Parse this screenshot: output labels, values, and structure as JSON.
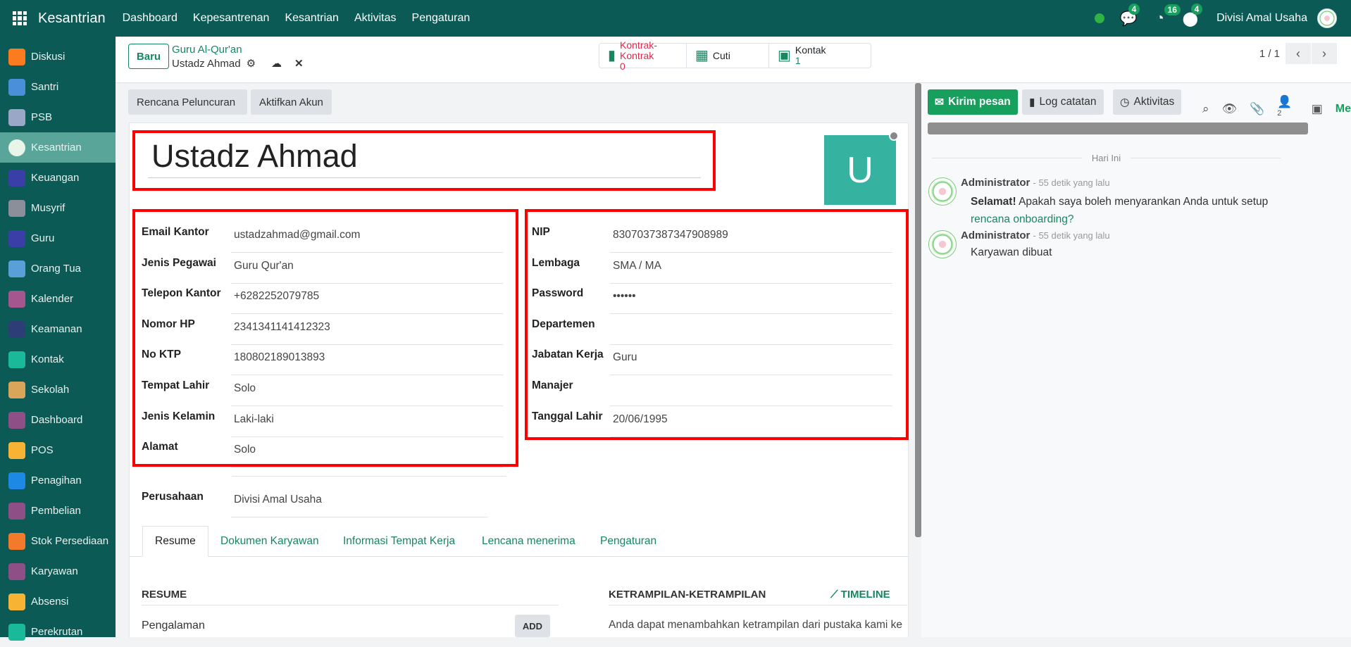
{
  "topbar": {
    "brand": "Kesantrian",
    "menus": [
      "Dashboard",
      "Kepesantrenan",
      "Kesantrian",
      "Aktivitas",
      "Pengaturan"
    ],
    "messages_count": "4",
    "activities_count": "16",
    "third_count": "4",
    "user": "Divisi Amal Usaha"
  },
  "sidebar": {
    "items": [
      {
        "label": "Diskusi",
        "color": "#fb7b1e"
      },
      {
        "label": "Santri",
        "color": "#4a90d9"
      },
      {
        "label": "PSB",
        "color": "#9aa7c6"
      },
      {
        "label": "Kesantrian",
        "color": "#e9f5e9"
      },
      {
        "label": "Keuangan",
        "color": "#3a3fa8"
      },
      {
        "label": "Musyrif",
        "color": "#8b8f99"
      },
      {
        "label": "Guru",
        "color": "#3a3fa8"
      },
      {
        "label": "Orang Tua",
        "color": "#5aa0d8"
      },
      {
        "label": "Kalender",
        "color": "#a5568f"
      },
      {
        "label": "Keamanan",
        "color": "#2c3e75"
      },
      {
        "label": "Kontak",
        "color": "#1ab99a"
      },
      {
        "label": "Sekolah",
        "color": "#d9a55b"
      },
      {
        "label": "Dashboard",
        "color": "#8e4f86"
      },
      {
        "label": "POS",
        "color": "#f7b334"
      },
      {
        "label": "Penagihan",
        "color": "#1e88e5"
      },
      {
        "label": "Pembelian",
        "color": "#8e4f86"
      },
      {
        "label": "Stok Persediaan",
        "color": "#f3792b"
      },
      {
        "label": "Karyawan",
        "color": "#8e4f86"
      },
      {
        "label": "Absensi",
        "color": "#f7b334"
      },
      {
        "label": "Perekrutan",
        "color": "#1ab99a"
      }
    ],
    "active": "Kesantrian"
  },
  "control": {
    "new_label": "Baru",
    "breadcrumb_parent": "Guru Al-Qur'an",
    "breadcrumb_current": "Ustadz Ahmad",
    "pager": "1 / 1",
    "smart_buttons": [
      {
        "label": "Kontrak-Kontrak",
        "value": "0"
      },
      {
        "label": "Cuti"
      },
      {
        "label": "Kontak",
        "value": "1"
      }
    ]
  },
  "actions": [
    "Rencana Peluncuran",
    "Aktifkan Akun"
  ],
  "employee": {
    "name": "Ustadz Ahmad",
    "avatar_letter": "U",
    "avatar_color": "#35b3a0"
  },
  "left_fields": [
    {
      "label": "Email Kantor",
      "value": "ustadzahmad@gmail.com"
    },
    {
      "label": "Jenis Pegawai",
      "value": "Guru Qur'an"
    },
    {
      "label": "Telepon Kantor",
      "value": "+6282252079785"
    },
    {
      "label": "Nomor HP",
      "value": "2341341141412323"
    },
    {
      "label": "No KTP",
      "value": "180802189013893"
    },
    {
      "label": "Tempat Lahir",
      "value": "Solo"
    },
    {
      "label": "Jenis Kelamin",
      "value": "Laki-laki"
    },
    {
      "label": "Alamat",
      "value": "Solo"
    }
  ],
  "company_field": {
    "label": "Perusahaan",
    "value": "Divisi Amal Usaha"
  },
  "right_fields": [
    {
      "label": "NIP",
      "value": "8307037387347908989"
    },
    {
      "label": "Lembaga",
      "value": "SMA / MA"
    },
    {
      "label": "Password",
      "value": "••••••"
    },
    {
      "label": "Departemen",
      "value": ""
    },
    {
      "label": "Jabatan Kerja",
      "value": "Guru"
    },
    {
      "label": "Manajer",
      "value": ""
    },
    {
      "label": "Tanggal Lahir",
      "value": "20/06/1995"
    }
  ],
  "tabs": [
    "Resume",
    "Dokumen Karyawan",
    "Informasi Tempat Kerja",
    "Lencana menerima",
    "Pengaturan"
  ],
  "resume": {
    "title": "RESUME",
    "experience": "Pengalaman",
    "add": "ADD",
    "skills_title": "KETRAMPILAN-KETRAMPILAN",
    "timeline": "TIMELINE",
    "skills_text": "Anda dapat menambahkan ketrampilan dari pustaka kami ke"
  },
  "chatter": {
    "send": "Kirim pesan",
    "log": "Log catatan",
    "activities": "Aktivitas",
    "followers": "2",
    "more": "Me",
    "date_sep": "Hari Ini",
    "messages": [
      {
        "author": "Administrator",
        "time": "- 55 detik yang lalu",
        "bold": "Selamat!",
        "text": " Apakah saya boleh menyarankan Anda untuk setup ",
        "link": "rencana onboarding?"
      },
      {
        "author": "Administrator",
        "time": "- 55 detik yang lalu",
        "text": "Karyawan dibuat"
      }
    ]
  },
  "colors": {
    "topbar": "#0b5a55",
    "primary": "#17875f",
    "alert": "#ff0000"
  }
}
